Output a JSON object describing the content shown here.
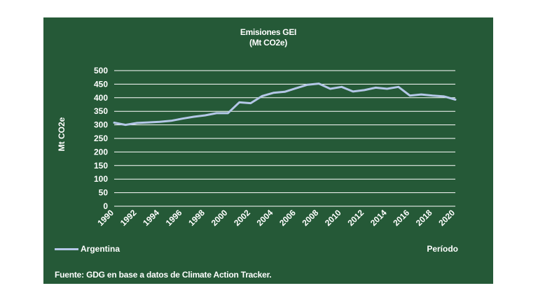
{
  "chart_data": {
    "type": "line",
    "title": "Emisiones GEI",
    "subtitle": "(Mt CO2e)",
    "ylabel": "Mt CO2e",
    "xlabel": "Período",
    "ylim": [
      0,
      500
    ],
    "yticks": [
      0,
      50,
      100,
      150,
      200,
      250,
      300,
      350,
      400,
      450,
      500
    ],
    "xlim": [
      1990,
      2020
    ],
    "xticks": [
      1990,
      1992,
      1994,
      1996,
      1998,
      2000,
      2002,
      2004,
      2006,
      2008,
      2010,
      2012,
      2014,
      2016,
      2018,
      2020
    ],
    "grid": true,
    "legend_position": "bottom-left",
    "x": [
      1990,
      1991,
      1992,
      1993,
      1994,
      1995,
      1996,
      1997,
      1998,
      1999,
      2000,
      2001,
      2002,
      2003,
      2004,
      2005,
      2006,
      2007,
      2008,
      2009,
      2010,
      2011,
      2012,
      2013,
      2014,
      2015,
      2016,
      2017,
      2018,
      2019,
      2020
    ],
    "series": [
      {
        "name": "Argentina",
        "color": "#b4c7e7",
        "values": [
          308,
          300,
          307,
          309,
          311,
          315,
          323,
          330,
          335,
          343,
          343,
          383,
          380,
          406,
          418,
          422,
          435,
          448,
          452,
          433,
          440,
          423,
          428,
          437,
          433,
          440,
          408,
          412,
          408,
          405,
          393
        ]
      }
    ],
    "source": "Fuente: GDG en base a datos de Climate Action Tracker."
  },
  "colors": {
    "background": "#255937",
    "text": "#ffffff",
    "gridline": "#ffffff",
    "line": "#b4c7e7"
  }
}
